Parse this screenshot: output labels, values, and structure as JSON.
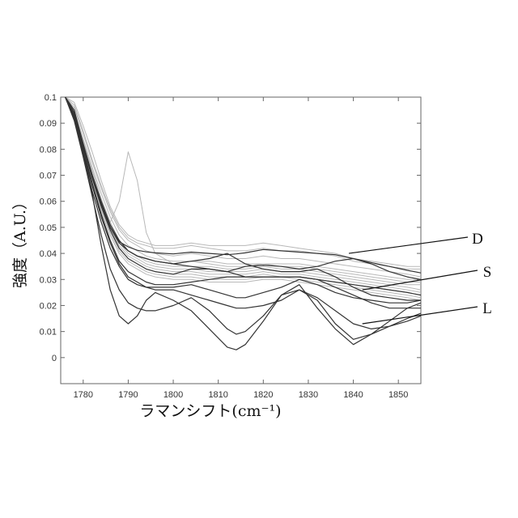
{
  "chart_data": {
    "type": "line",
    "xlabel": "ラマンシフト(cm⁻¹)",
    "ylabel": "強度（A.U.）",
    "xlim": [
      1775,
      1855
    ],
    "ylim": [
      -0.01,
      0.1
    ],
    "x_ticks": [
      "1780",
      "1790",
      "1800",
      "1810",
      "1820",
      "1830",
      "1840",
      "1850"
    ],
    "y_ticks": [
      "0.1",
      "0.09",
      "0.08",
      "0.07",
      "0.06",
      "0.05",
      "0.04",
      "0.03",
      "0.02",
      "0.01",
      "0"
    ],
    "grid": false,
    "legend": "none",
    "colors": {
      "dark_series": "#333333",
      "light_series": "#b8b8b8",
      "axes": "#555555"
    },
    "x": [
      1776,
      1778,
      1780,
      1782,
      1784,
      1786,
      1788,
      1790,
      1792,
      1794,
      1796,
      1800,
      1804,
      1808,
      1812,
      1814,
      1816,
      1820,
      1824,
      1828,
      1832,
      1836,
      1840,
      1844,
      1848,
      1852,
      1855
    ],
    "series": [
      {
        "group": "dark",
        "values": [
          0.106,
          0.095,
          0.082,
          0.07,
          0.059,
          0.05,
          0.0445,
          0.0425,
          0.0412,
          0.0406,
          0.0402,
          0.0398,
          0.0405,
          0.04,
          0.0395,
          0.0398,
          0.0402,
          0.0415,
          0.041,
          0.0405,
          0.04,
          0.0395,
          0.038,
          0.0365,
          0.035,
          0.0335,
          0.0325
        ]
      },
      {
        "group": "dark",
        "values": [
          0.104,
          0.093,
          0.081,
          0.069,
          0.058,
          0.049,
          0.042,
          0.038,
          0.036,
          0.034,
          0.033,
          0.032,
          0.034,
          0.034,
          0.033,
          0.034,
          0.035,
          0.0355,
          0.035,
          0.034,
          0.035,
          0.037,
          0.038,
          0.036,
          0.033,
          0.031,
          0.03
        ]
      },
      {
        "group": "dark",
        "values": [
          0.104,
          0.093,
          0.08,
          0.067,
          0.055,
          0.045,
          0.037,
          0.033,
          0.031,
          0.029,
          0.028,
          0.028,
          0.029,
          0.03,
          0.031,
          0.031,
          0.031,
          0.031,
          0.031,
          0.031,
          0.03,
          0.029,
          0.028,
          0.027,
          0.026,
          0.025,
          0.024
        ]
      },
      {
        "group": "dark",
        "values": [
          0.104,
          0.091,
          0.077,
          0.062,
          0.047,
          0.034,
          0.026,
          0.021,
          0.019,
          0.018,
          0.018,
          0.02,
          0.023,
          0.018,
          0.011,
          0.009,
          0.01,
          0.016,
          0.024,
          0.026,
          0.022,
          0.013,
          0.007,
          0.009,
          0.012,
          0.015,
          0.017
        ]
      },
      {
        "group": "dark",
        "values": [
          0.106,
          0.094,
          0.08,
          0.063,
          0.043,
          0.026,
          0.016,
          0.013,
          0.016,
          0.022,
          0.025,
          0.022,
          0.018,
          0.011,
          0.004,
          0.003,
          0.005,
          0.014,
          0.024,
          0.028,
          0.019,
          0.011,
          0.005,
          0.009,
          0.014,
          0.019,
          0.021
        ]
      },
      {
        "group": "dark",
        "values": [
          0.105,
          0.093,
          0.081,
          0.07,
          0.06,
          0.051,
          0.045,
          0.041,
          0.039,
          0.038,
          0.037,
          0.036,
          0.035,
          0.034,
          0.033,
          0.032,
          0.031,
          0.031,
          0.031,
          0.031,
          0.03,
          0.027,
          0.024,
          0.021,
          0.019,
          0.019,
          0.019
        ]
      },
      {
        "group": "dark",
        "values": [
          0.105,
          0.092,
          0.078,
          0.064,
          0.052,
          0.042,
          0.035,
          0.03,
          0.028,
          0.027,
          0.027,
          0.027,
          0.028,
          0.026,
          0.024,
          0.023,
          0.023,
          0.025,
          0.027,
          0.03,
          0.028,
          0.025,
          0.023,
          0.022,
          0.021,
          0.021,
          0.022
        ]
      },
      {
        "group": "dark",
        "values": [
          0.105,
          0.094,
          0.082,
          0.07,
          0.059,
          0.05,
          0.044,
          0.041,
          0.039,
          0.038,
          0.037,
          0.036,
          0.037,
          0.038,
          0.04,
          0.038,
          0.036,
          0.034,
          0.033,
          0.033,
          0.034,
          0.031,
          0.027,
          0.024,
          0.023,
          0.022,
          0.022
        ]
      },
      {
        "group": "dark",
        "values": [
          0.104,
          0.092,
          0.079,
          0.066,
          0.054,
          0.044,
          0.036,
          0.031,
          0.029,
          0.027,
          0.026,
          0.026,
          0.024,
          0.022,
          0.02,
          0.019,
          0.019,
          0.02,
          0.022,
          0.026,
          0.023,
          0.018,
          0.013,
          0.011,
          0.012,
          0.014,
          0.016
        ]
      },
      {
        "group": "light",
        "values": [
          0.106,
          0.097,
          0.087,
          0.076,
          0.066,
          0.057,
          0.05,
          0.046,
          0.044,
          0.043,
          0.042,
          0.042,
          0.043,
          0.042,
          0.041,
          0.041,
          0.041,
          0.042,
          0.041,
          0.041,
          0.04,
          0.039,
          0.037,
          0.036,
          0.035,
          0.034,
          0.034
        ]
      },
      {
        "group": "light",
        "values": [
          0.105,
          0.096,
          0.086,
          0.075,
          0.065,
          0.056,
          0.049,
          0.045,
          0.043,
          0.041,
          0.04,
          0.039,
          0.04,
          0.039,
          0.038,
          0.038,
          0.038,
          0.039,
          0.038,
          0.038,
          0.037,
          0.036,
          0.035,
          0.034,
          0.033,
          0.032,
          0.031
        ]
      },
      {
        "group": "light",
        "values": [
          0.105,
          0.095,
          0.084,
          0.073,
          0.063,
          0.054,
          0.047,
          0.043,
          0.041,
          0.039,
          0.038,
          0.037,
          0.037,
          0.037,
          0.036,
          0.036,
          0.036,
          0.036,
          0.036,
          0.036,
          0.035,
          0.034,
          0.033,
          0.032,
          0.031,
          0.03,
          0.03
        ]
      },
      {
        "group": "light",
        "values": [
          0.104,
          0.094,
          0.083,
          0.072,
          0.061,
          0.052,
          0.045,
          0.041,
          0.039,
          0.037,
          0.036,
          0.035,
          0.035,
          0.035,
          0.034,
          0.034,
          0.034,
          0.035,
          0.034,
          0.034,
          0.033,
          0.032,
          0.031,
          0.03,
          0.029,
          0.028,
          0.028
        ]
      },
      {
        "group": "light",
        "values": [
          0.104,
          0.094,
          0.083,
          0.071,
          0.06,
          0.051,
          0.044,
          0.04,
          0.038,
          0.036,
          0.035,
          0.034,
          0.034,
          0.033,
          0.033,
          0.033,
          0.033,
          0.034,
          0.033,
          0.033,
          0.032,
          0.031,
          0.03,
          0.029,
          0.028,
          0.027,
          0.026
        ]
      },
      {
        "group": "light",
        "values": [
          0.104,
          0.093,
          0.082,
          0.07,
          0.059,
          0.05,
          0.043,
          0.039,
          0.037,
          0.035,
          0.034,
          0.033,
          0.033,
          0.032,
          0.032,
          0.032,
          0.032,
          0.033,
          0.032,
          0.032,
          0.031,
          0.03,
          0.029,
          0.028,
          0.027,
          0.026,
          0.025
        ]
      },
      {
        "group": "light",
        "values": [
          0.103,
          0.093,
          0.081,
          0.069,
          0.058,
          0.049,
          0.042,
          0.038,
          0.036,
          0.034,
          0.033,
          0.032,
          0.032,
          0.031,
          0.031,
          0.031,
          0.031,
          0.032,
          0.031,
          0.031,
          0.03,
          0.029,
          0.028,
          0.027,
          0.026,
          0.025,
          0.024
        ]
      },
      {
        "group": "light",
        "values": [
          0.103,
          0.092,
          0.08,
          0.068,
          0.057,
          0.048,
          0.041,
          0.037,
          0.035,
          0.033,
          0.032,
          0.031,
          0.031,
          0.03,
          0.03,
          0.03,
          0.03,
          0.031,
          0.031,
          0.03,
          0.029,
          0.028,
          0.027,
          0.026,
          0.025,
          0.024,
          0.023
        ]
      },
      {
        "group": "light",
        "values": [
          0.103,
          0.092,
          0.08,
          0.067,
          0.056,
          0.047,
          0.04,
          0.036,
          0.034,
          0.032,
          0.031,
          0.03,
          0.03,
          0.029,
          0.029,
          0.029,
          0.029,
          0.03,
          0.03,
          0.029,
          0.028,
          0.027,
          0.026,
          0.025,
          0.024,
          0.023,
          0.022
        ]
      },
      {
        "group": "light",
        "values": [
          0.106,
          0.098,
          0.089,
          0.079,
          0.068,
          0.058,
          0.051,
          0.047,
          0.045,
          0.044,
          0.043,
          0.043,
          0.044,
          0.043,
          0.043,
          0.043,
          0.043,
          0.044,
          0.043,
          0.042,
          0.041,
          0.04,
          0.038,
          0.037,
          0.036,
          0.035,
          0.035
        ]
      },
      {
        "group": "light",
        "values": [
          0.104,
          0.093,
          0.081,
          0.069,
          0.059,
          0.052,
          0.06,
          0.079,
          0.068,
          0.048,
          0.04,
          0.036,
          0.037,
          0.036,
          0.035,
          0.035,
          0.035,
          0.036,
          0.035,
          0.035,
          0.034,
          0.033,
          0.032,
          0.031,
          0.03,
          0.029,
          0.029
        ]
      }
    ],
    "annotations": [
      {
        "text": "D",
        "points_to": [
          1839,
          0.04
        ]
      },
      {
        "text": "S",
        "points_to": [
          1842,
          0.026
        ]
      },
      {
        "text": "L",
        "points_to": [
          1842,
          0.013
        ]
      }
    ]
  }
}
